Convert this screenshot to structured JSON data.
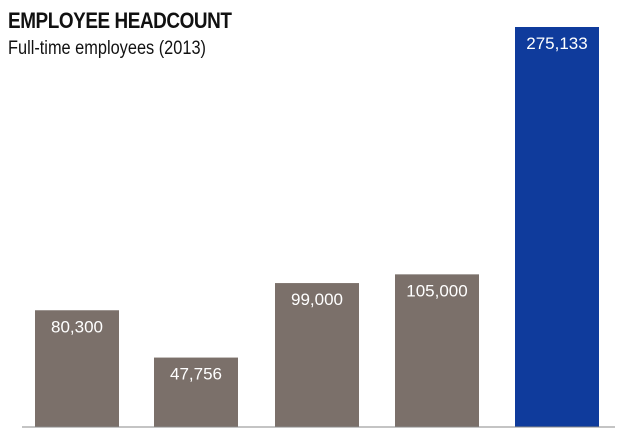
{
  "chart_data": {
    "type": "bar",
    "title": "EMPLOYEE HEADCOUNT",
    "subtitle": "Full-time employees (2013)",
    "categories": [
      "",
      "",
      "",
      "",
      ""
    ],
    "values": [
      80300,
      47756,
      99000,
      105000,
      275133
    ],
    "value_labels": [
      "80,300",
      "47,756",
      "99,000",
      "105,000",
      "275,133"
    ],
    "ylim": [
      0,
      275133
    ],
    "grid": false,
    "colors": [
      "#7b706a",
      "#7b706a",
      "#7b706a",
      "#7b706a",
      "#0f3b9c"
    ]
  }
}
